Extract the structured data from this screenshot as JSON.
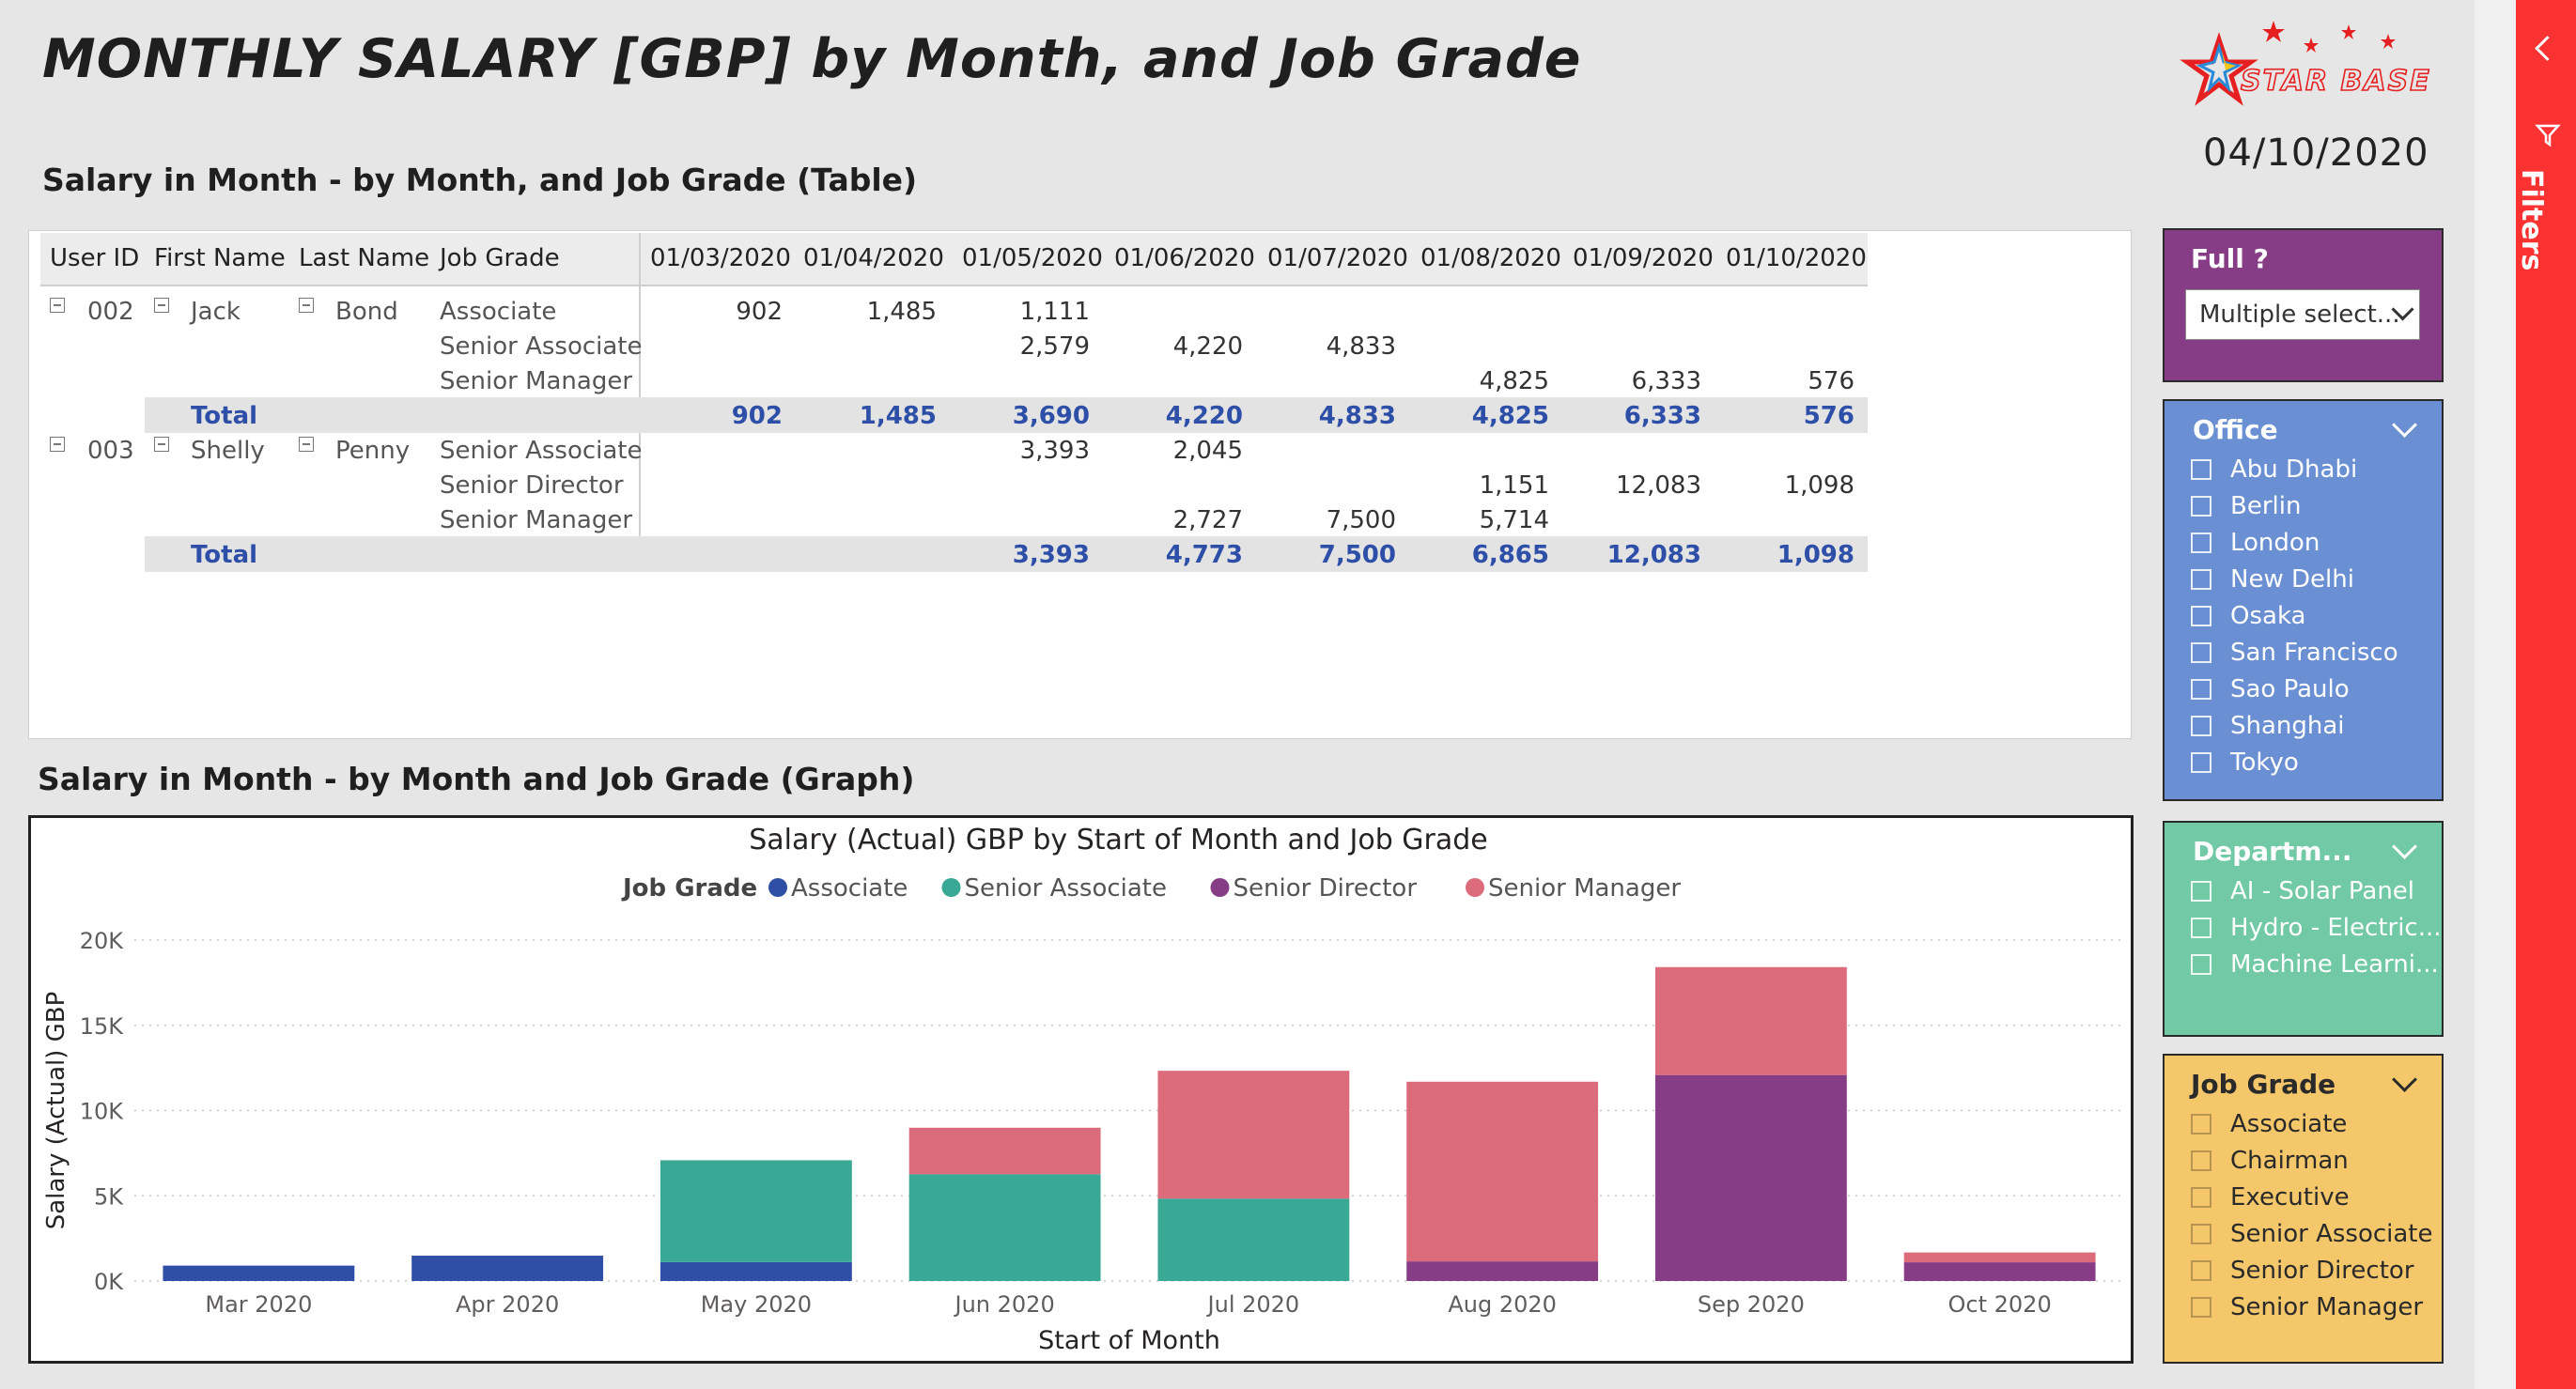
{
  "header": {
    "title": "MONTHLY SALARY [GBP] by Month, and Job Grade",
    "logo_text": "STAR BASE",
    "date": "04/10/2020"
  },
  "table_section": {
    "title": "Salary in Month - by Month, and Job Grade (Table)",
    "columns": [
      "User ID",
      "First Name",
      "Last Name",
      "Job Grade",
      "01/03/2020",
      "01/04/2020",
      "01/05/2020",
      "01/06/2020",
      "01/07/2020",
      "01/08/2020",
      "01/09/2020",
      "01/10/2020"
    ],
    "groups": [
      {
        "user_id": "002",
        "first_name": "Jack",
        "last_name": "Bond",
        "rows": [
          {
            "grade": "Associate",
            "values": [
              "902",
              "1,485",
              "1,111",
              "",
              "",
              "",
              "",
              ""
            ]
          },
          {
            "grade": "Senior Associate",
            "values": [
              "",
              "",
              "2,579",
              "4,220",
              "4,833",
              "",
              "",
              ""
            ]
          },
          {
            "grade": "Senior Manager",
            "values": [
              "",
              "",
              "",
              "",
              "",
              "4,825",
              "6,333",
              "576"
            ]
          }
        ],
        "total_label": "Total",
        "totals": [
          "902",
          "1,485",
          "3,690",
          "4,220",
          "4,833",
          "4,825",
          "6,333",
          "576"
        ]
      },
      {
        "user_id": "003",
        "first_name": "Shelly",
        "last_name": "Penny",
        "rows": [
          {
            "grade": "Senior Associate",
            "values": [
              "",
              "",
              "3,393",
              "2,045",
              "",
              "",
              "",
              ""
            ]
          },
          {
            "grade": "Senior Director",
            "values": [
              "",
              "",
              "",
              "",
              "",
              "1,151",
              "12,083",
              "1,098"
            ]
          },
          {
            "grade": "Senior Manager",
            "values": [
              "",
              "",
              "",
              "2,727",
              "7,500",
              "5,714",
              "",
              ""
            ]
          }
        ],
        "total_label": "Total",
        "totals": [
          "",
          "",
          "3,393",
          "4,773",
          "7,500",
          "6,865",
          "12,083",
          "1,098"
        ]
      }
    ]
  },
  "graph_section": {
    "title": "Salary in Month - by Month and Job Grade (Graph)"
  },
  "chart_data": {
    "type": "bar",
    "stacked": true,
    "title": "Salary (Actual) GBP by Start of Month and Job Grade",
    "legend_title": "Job Grade",
    "legend_position": "top-center",
    "xlabel": "Start of Month",
    "ylabel": "Salary (Actual) GBP",
    "ylim": [
      0,
      20000
    ],
    "yticks": [
      "0K",
      "5K",
      "10K",
      "15K",
      "20K"
    ],
    "grid": true,
    "categories": [
      "Mar 2020",
      "Apr 2020",
      "May 2020",
      "Jun 2020",
      "Jul 2020",
      "Aug 2020",
      "Sep 2020",
      "Oct 2020"
    ],
    "series": [
      {
        "name": "Associate",
        "color": "#2f4ea5",
        "values": [
          902,
          1485,
          1111,
          0,
          0,
          0,
          0,
          0
        ]
      },
      {
        "name": "Senior Associate",
        "color": "#39a894",
        "values": [
          0,
          0,
          5972,
          6265,
          4833,
          0,
          0,
          0
        ]
      },
      {
        "name": "Senior Director",
        "color": "#873d86",
        "values": [
          0,
          0,
          0,
          0,
          0,
          1151,
          12083,
          1098
        ]
      },
      {
        "name": "Senior Manager",
        "color": "#dc6b7c",
        "values": [
          0,
          0,
          0,
          2727,
          7500,
          10539,
          6333,
          576
        ]
      }
    ]
  },
  "slicers": {
    "full": {
      "title": "Full ?",
      "value": "Multiple select...",
      "color": "#873d86"
    },
    "office": {
      "title": "Office",
      "color": "#6a8fd2",
      "items": [
        "Abu Dhabi",
        "Berlin",
        "London",
        "New Delhi",
        "Osaka",
        "San Francisco",
        "Sao Paulo",
        "Shanghai",
        "Tokyo"
      ]
    },
    "department": {
      "title": "Departm...",
      "color": "#72c9a5",
      "items": [
        "AI - Solar Panel",
        "Hydro - Electric...",
        "Machine Learni..."
      ]
    },
    "job_grade": {
      "title": "Job Grade",
      "color": "#f4c76b",
      "items": [
        "Associate",
        "Chairman",
        "Executive",
        "Senior Associate",
        "Senior Director",
        "Senior Manager"
      ]
    }
  },
  "filters_pane": {
    "label": "Filters",
    "color": "#fa3232"
  }
}
